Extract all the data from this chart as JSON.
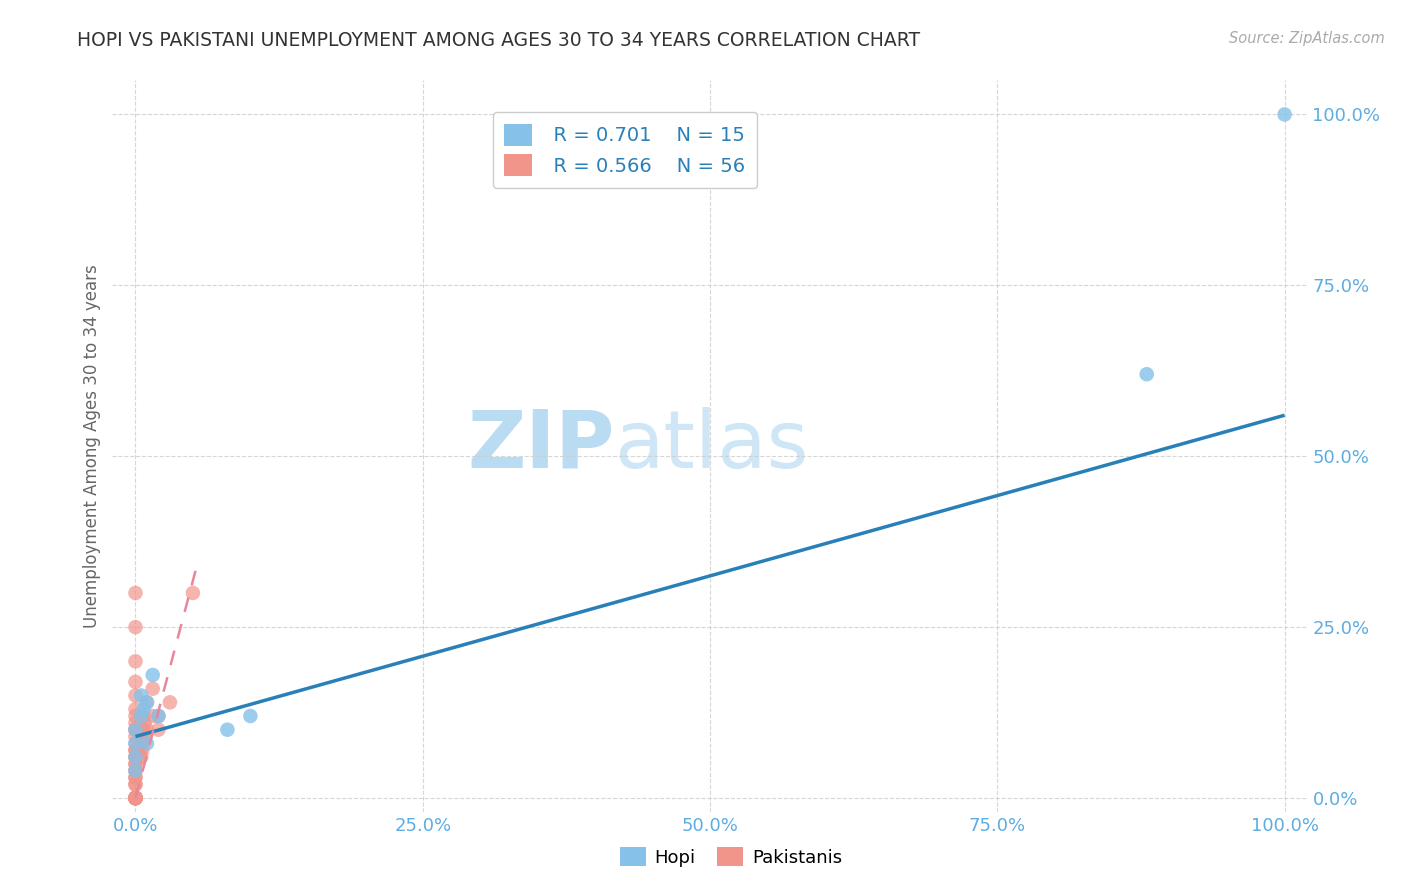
{
  "title": "HOPI VS PAKISTANI UNEMPLOYMENT AMONG AGES 30 TO 34 YEARS CORRELATION CHART",
  "source": "Source: ZipAtlas.com",
  "ylabel": "Unemployment Among Ages 30 to 34 years",
  "watermark_left": "ZIP",
  "watermark_right": "atlas",
  "hopi_color": "#85c1e9",
  "hopi_color_line": "#2980b9",
  "pakistani_color": "#f1948a",
  "pakistani_color_line": "#e8869a",
  "legend_r_hopi": "R = 0.701",
  "legend_n_hopi": "N = 15",
  "legend_r_pak": "R = 0.566",
  "legend_n_pak": "N = 56",
  "hopi_x": [
    0.0,
    0.0,
    0.0,
    0.0,
    0.005,
    0.005,
    0.007,
    0.01,
    0.01,
    0.015,
    0.02,
    0.08,
    0.1,
    0.88,
    1.0
  ],
  "hopi_y": [
    0.04,
    0.06,
    0.08,
    0.1,
    0.12,
    0.15,
    0.13,
    0.14,
    0.08,
    0.18,
    0.12,
    0.1,
    0.12,
    0.62,
    1.0
  ],
  "pakistani_x": [
    0.0,
    0.0,
    0.0,
    0.0,
    0.0,
    0.0,
    0.0,
    0.0,
    0.0,
    0.0,
    0.0,
    0.0,
    0.0,
    0.0,
    0.0,
    0.0,
    0.0,
    0.0,
    0.0,
    0.0,
    0.0,
    0.0,
    0.0,
    0.0,
    0.0,
    0.0,
    0.0,
    0.0,
    0.0,
    0.0,
    0.0,
    0.0,
    0.0,
    0.0,
    0.0,
    0.0,
    0.0,
    0.004,
    0.004,
    0.005,
    0.005,
    0.006,
    0.006,
    0.007,
    0.007,
    0.007,
    0.008,
    0.008,
    0.01,
    0.01,
    0.015,
    0.015,
    0.02,
    0.02,
    0.03,
    0.05
  ],
  "pakistani_y": [
    0.0,
    0.0,
    0.0,
    0.0,
    0.0,
    0.0,
    0.0,
    0.0,
    0.0,
    0.0,
    0.0,
    0.0,
    0.0,
    0.02,
    0.02,
    0.03,
    0.03,
    0.04,
    0.04,
    0.05,
    0.05,
    0.06,
    0.06,
    0.07,
    0.07,
    0.08,
    0.09,
    0.1,
    0.1,
    0.11,
    0.12,
    0.13,
    0.15,
    0.17,
    0.2,
    0.25,
    0.3,
    0.06,
    0.07,
    0.06,
    0.08,
    0.07,
    0.09,
    0.08,
    0.1,
    0.12,
    0.09,
    0.11,
    0.1,
    0.14,
    0.12,
    0.16,
    0.1,
    0.12,
    0.14,
    0.3
  ],
  "blue_line_x": [
    0.0,
    1.0
  ],
  "blue_line_y": [
    0.09,
    0.56
  ],
  "pink_line_x": [
    0.0,
    0.055
  ],
  "pink_line_y": [
    0.0,
    0.35
  ],
  "xlim": [
    -0.02,
    1.02
  ],
  "ylim": [
    -0.02,
    1.05
  ],
  "xticks": [
    0.0,
    0.25,
    0.5,
    0.75,
    1.0
  ],
  "yticks": [
    0.0,
    0.25,
    0.5,
    0.75,
    1.0
  ],
  "xticklabels": [
    "0.0%",
    "25.0%",
    "50.0%",
    "75.0%",
    "100.0%"
  ],
  "yticklabels": [
    "0.0%",
    "25.0%",
    "50.0%",
    "75.0%",
    "100.0%"
  ],
  "background_color": "#ffffff",
  "grid_color": "#cccccc",
  "title_color": "#333333",
  "source_color": "#aaaaaa",
  "axis_label_color": "#666666",
  "tick_color": "#5dade2",
  "r_value_color": "#2980b9",
  "legend_label_color": "#333333"
}
